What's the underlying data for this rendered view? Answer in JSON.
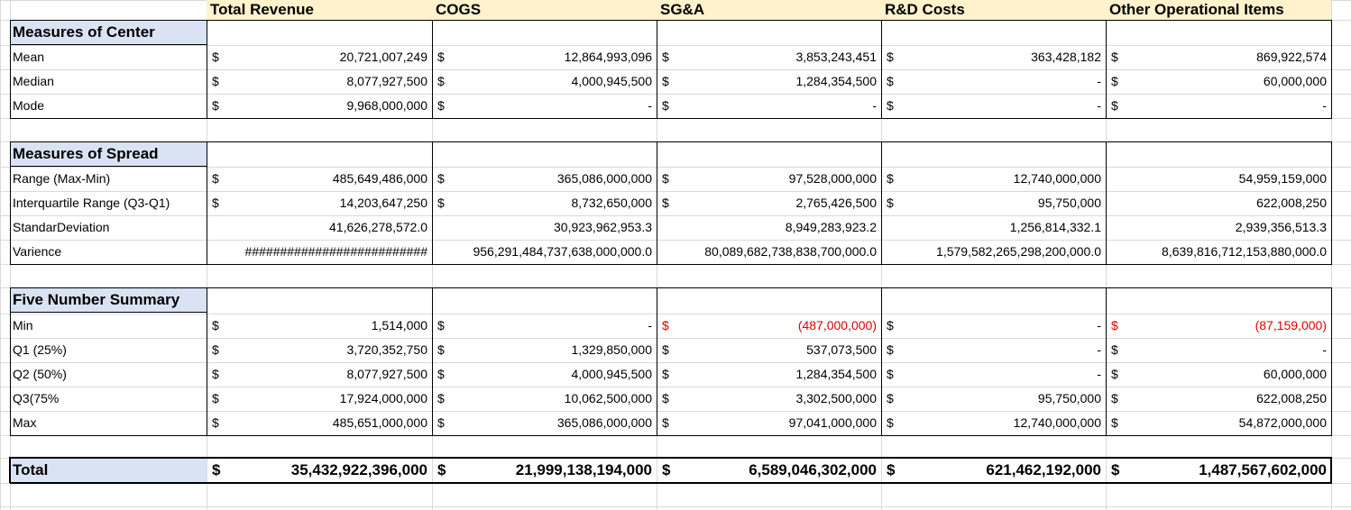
{
  "headers": [
    "Total Revenue",
    "COGS",
    "SG&A",
    "R&D Costs",
    "Other Operational Items"
  ],
  "currency_symbol": "$",
  "sections": [
    {
      "title": "Measures of Center",
      "rows": [
        {
          "label": "Mean",
          "dollar": [
            true,
            true,
            true,
            true,
            true
          ],
          "values": [
            "20,721,007,249",
            "12,864,993,096",
            "3,853,243,451",
            "363,428,182",
            "869,922,574"
          ],
          "negative": [
            false,
            false,
            false,
            false,
            false
          ]
        },
        {
          "label": "Median",
          "dollar": [
            true,
            true,
            true,
            true,
            true
          ],
          "values": [
            "8,077,927,500",
            "4,000,945,500",
            "1,284,354,500",
            "-",
            "60,000,000"
          ],
          "negative": [
            false,
            false,
            false,
            false,
            false
          ]
        },
        {
          "label": "Mode",
          "dollar": [
            true,
            true,
            true,
            true,
            true
          ],
          "values": [
            "9,968,000,000",
            "-",
            "-",
            "-",
            "-"
          ],
          "negative": [
            false,
            false,
            false,
            false,
            false
          ]
        }
      ]
    },
    {
      "title": "Measures of Spread",
      "rows": [
        {
          "label": "Range (Max-Min)",
          "dollar": [
            true,
            true,
            true,
            true,
            false
          ],
          "values": [
            "485,649,486,000",
            "365,086,000,000",
            "97,528,000,000",
            "12,740,000,000",
            "54,959,159,000"
          ],
          "negative": [
            false,
            false,
            false,
            false,
            false
          ]
        },
        {
          "label": "Interquartile Range (Q3-Q1)",
          "dollar": [
            true,
            true,
            true,
            true,
            false
          ],
          "values": [
            "14,203,647,250",
            "8,732,650,000",
            "2,765,426,500",
            "95,750,000",
            "622,008,250"
          ],
          "negative": [
            false,
            false,
            false,
            false,
            false
          ]
        },
        {
          "label": "StandarDeviation",
          "dollar": [
            false,
            false,
            false,
            false,
            false
          ],
          "values": [
            "41,626,278,572.0",
            "30,923,962,953.3",
            "8,949,283,923.2",
            "1,256,814,332.1",
            "2,939,356,513.3"
          ],
          "negative": [
            false,
            false,
            false,
            false,
            false
          ]
        },
        {
          "label": "Varience",
          "dollar": [
            false,
            false,
            false,
            false,
            false
          ],
          "values": [
            "##########################",
            "956,291,484,737,638,000,000.0",
            "80,089,682,738,838,700,000.0",
            "1,579,582,265,298,200,000.0",
            "8,639,816,712,153,880,000.0"
          ],
          "negative": [
            false,
            false,
            false,
            false,
            false
          ]
        }
      ]
    },
    {
      "title": "Five Number Summary",
      "rows": [
        {
          "label": "Min",
          "dollar": [
            true,
            true,
            true,
            true,
            true
          ],
          "values": [
            "1,514,000",
            "-",
            "(487,000,000)",
            "-",
            "(87,159,000)"
          ],
          "negative": [
            false,
            false,
            true,
            false,
            true
          ]
        },
        {
          "label": "Q1 (25%)",
          "dollar": [
            true,
            true,
            true,
            true,
            true
          ],
          "values": [
            "3,720,352,750",
            "1,329,850,000",
            "537,073,500",
            "-",
            "-"
          ],
          "negative": [
            false,
            false,
            false,
            false,
            false
          ]
        },
        {
          "label": "Q2 (50%)",
          "dollar": [
            true,
            true,
            true,
            true,
            true
          ],
          "values": [
            "8,077,927,500",
            "4,000,945,500",
            "1,284,354,500",
            "-",
            "60,000,000"
          ],
          "negative": [
            false,
            false,
            false,
            false,
            false
          ]
        },
        {
          "label": "Q3(75%",
          "dollar": [
            true,
            true,
            true,
            true,
            true
          ],
          "values": [
            "17,924,000,000",
            "10,062,500,000",
            "3,302,500,000",
            "95,750,000",
            "622,008,250"
          ],
          "negative": [
            false,
            false,
            false,
            false,
            false
          ]
        },
        {
          "label": "Max",
          "dollar": [
            true,
            true,
            true,
            true,
            true
          ],
          "values": [
            "485,651,000,000",
            "365,086,000,000",
            "97,041,000,000",
            "12,740,000,000",
            "54,872,000,000"
          ],
          "negative": [
            false,
            false,
            false,
            false,
            false
          ]
        }
      ]
    }
  ],
  "total": {
    "label": "Total",
    "dollar": [
      true,
      true,
      true,
      true,
      true
    ],
    "values": [
      "35,432,922,396,000",
      "21,999,138,194,000",
      "6,589,046,302,000",
      "621,462,192,000",
      "1,487,567,602,000"
    ]
  },
  "colors": {
    "header_fill": "#fff2cc",
    "section_fill": "#dae3f3",
    "negative_text": "#e00000",
    "grid_line": "#d9d9d9"
  }
}
